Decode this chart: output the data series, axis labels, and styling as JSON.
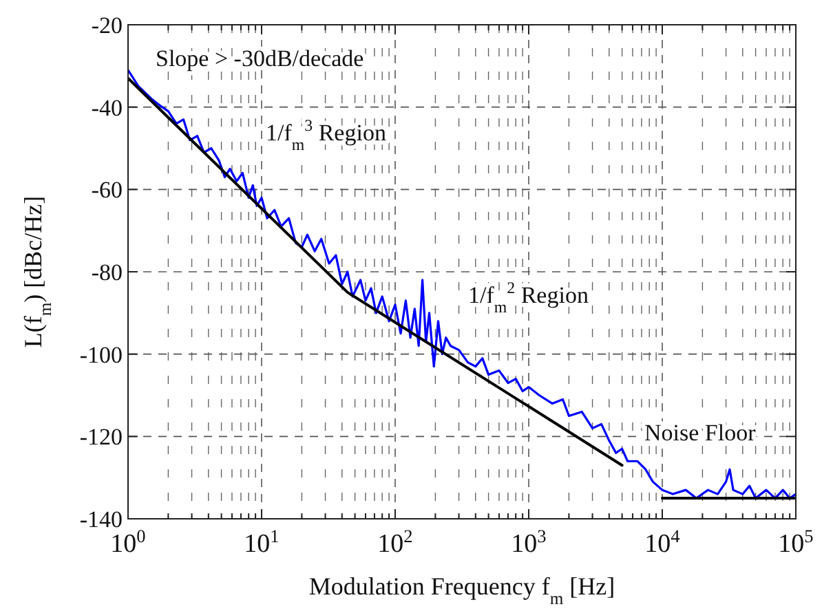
{
  "chart_data": {
    "type": "line",
    "xlabel": "Modulation Frequency f$_{m}$ [Hz]",
    "ylabel": "L(f$_{m}$) [dBc/Hz]",
    "log": "x",
    "grid": true,
    "marker": "none",
    "line_style": "solid",
    "xlim": [
      1,
      100000
    ],
    "ylim": [
      -140,
      -20
    ],
    "xticks": [
      {
        "value": 1,
        "label": "10$^{0}$"
      },
      {
        "value": 10,
        "label": "10$^{1}$"
      },
      {
        "value": 100,
        "label": "10$^{2}$"
      },
      {
        "value": 1000,
        "label": "10$^{3}$"
      },
      {
        "value": 10000,
        "label": "10$^{4}$"
      },
      {
        "value": 100000,
        "label": "10$^{5}$"
      }
    ],
    "yticks": [
      -140,
      -120,
      -100,
      -80,
      -60,
      -40,
      -20
    ],
    "series": [
      {
        "color": "#0000ff",
        "x": [
          1,
          1.2,
          1.5,
          1.8,
          2,
          2.3,
          2.6,
          2.9,
          3.3,
          3.7,
          4.2,
          4.8,
          5.3,
          5.8,
          6.5,
          7.2,
          8,
          8.6,
          9.2,
          10,
          11,
          12.5,
          14,
          16,
          18,
          20,
          22,
          25,
          28,
          32,
          36,
          40,
          44,
          48,
          55,
          60,
          66,
          72,
          80,
          90,
          100,
          110,
          120,
          130,
          140,
          150,
          160,
          170,
          180,
          195,
          210,
          225,
          240,
          260,
          300,
          350,
          400,
          450,
          500,
          600,
          700,
          800,
          900,
          1000,
          1200,
          1500,
          1800,
          2000,
          2500,
          3000,
          3500,
          4000,
          4500,
          5000,
          5500,
          6500,
          7500,
          8500,
          10000,
          12000,
          15000,
          18000,
          22000,
          26000,
          30000,
          32000,
          34000,
          40000,
          45000,
          50000,
          60000,
          70000,
          80000,
          90000,
          100000
        ],
        "values": [
          -31,
          -35,
          -38,
          -40,
          -41,
          -44,
          -43,
          -48,
          -47,
          -51,
          -50,
          -53,
          -57,
          -55,
          -58,
          -56,
          -62,
          -59,
          -64,
          -62,
          -67,
          -65,
          -69,
          -67,
          -73,
          -74,
          -71,
          -75,
          -72,
          -78,
          -76,
          -83,
          -80,
          -86,
          -82,
          -87,
          -84,
          -90,
          -86,
          -92,
          -88,
          -95,
          -87,
          -96,
          -89,
          -98,
          -82,
          -97,
          -90,
          -103,
          -92,
          -100,
          -96,
          -98,
          -99,
          -102,
          -103,
          -101,
          -105,
          -104,
          -107,
          -106,
          -109,
          -108,
          -110,
          -112,
          -111,
          -115,
          -114,
          -118,
          -117,
          -121,
          -124,
          -123,
          -126,
          -126,
          -128,
          -131,
          -133,
          -134,
          -133,
          -135,
          -133,
          -134,
          -131,
          -128,
          -133,
          -134,
          -132,
          -135,
          -133,
          -135,
          -133,
          -135,
          -134
        ]
      },
      {
        "color": "#000000",
        "x": [
          1,
          44,
          5000,
          7000,
          10000,
          100000
        ],
        "values": [
          -33,
          -85,
          -127,
          null,
          -135,
          -135
        ]
      }
    ],
    "annotations": [
      "Slope > -30dB/decade",
      "1/f$_{m}$$^{3}$ Region",
      "1/f$_{m}$$^{2}$ Region",
      "Noise Floor"
    ]
  }
}
